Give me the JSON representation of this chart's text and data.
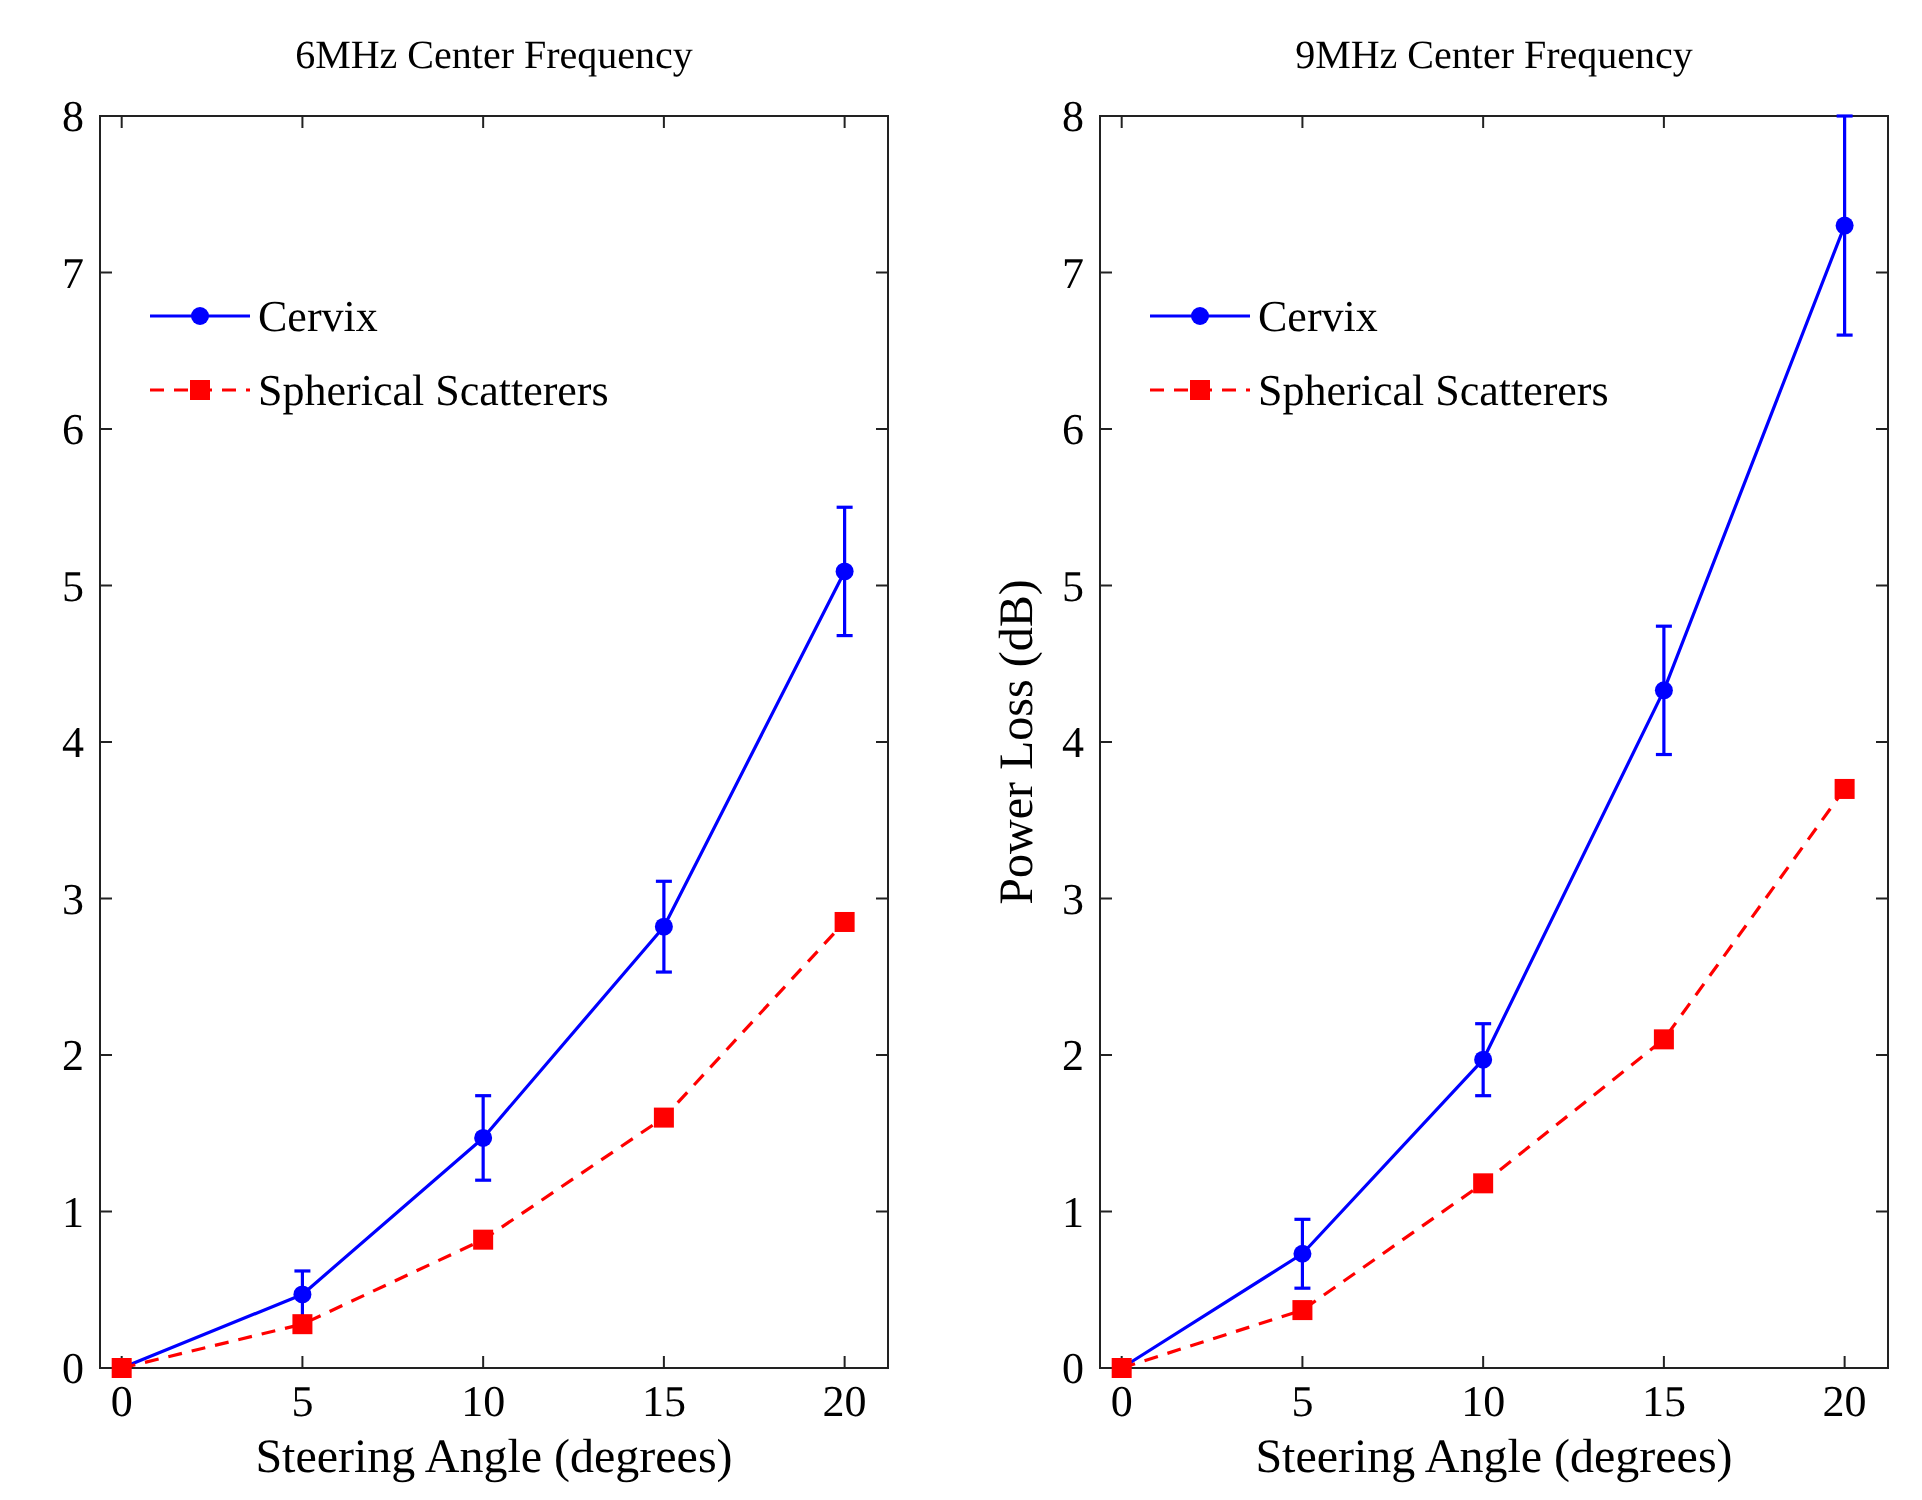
{
  "chart_data": [
    {
      "type": "line",
      "title": "6MHz Center Frequency",
      "xlabel": "Steering Angle (degrees)",
      "x": [
        0,
        5,
        10,
        15,
        20
      ],
      "xlim": [
        -0.6,
        21.2
      ],
      "xticks": [
        0,
        5,
        10,
        15,
        20
      ],
      "ylim": [
        0,
        8
      ],
      "yticks": [
        0,
        1,
        2,
        3,
        4,
        5,
        6,
        7,
        8
      ],
      "legend": "top left",
      "grid": false,
      "series": [
        {
          "name": "Cervix",
          "color": "#0000ff",
          "marker": "circle",
          "line_style": "solid",
          "values": [
            0,
            0.47,
            1.47,
            2.82,
            5.09
          ],
          "errors": [
            null,
            0.15,
            0.27,
            0.29,
            0.41
          ]
        },
        {
          "name": "Spherical Scatterers",
          "color": "#ff0000",
          "marker": "square",
          "line_style": "dashed",
          "values": [
            0,
            0.28,
            0.82,
            1.6,
            2.85
          ]
        }
      ]
    },
    {
      "type": "line",
      "title": "9MHz Center Frequency",
      "xlabel": "Steering Angle (degrees)",
      "ylabel": "Power Loss (dB)",
      "x": [
        0,
        5,
        10,
        15,
        20
      ],
      "xlim": [
        -0.6,
        21.2
      ],
      "xticks": [
        0,
        5,
        10,
        15,
        20
      ],
      "ylim": [
        0,
        8
      ],
      "yticks": [
        0,
        1,
        2,
        3,
        4,
        5,
        6,
        7,
        8
      ],
      "legend": "top left",
      "grid": false,
      "series": [
        {
          "name": "Cervix",
          "color": "#0000ff",
          "marker": "circle",
          "line_style": "solid",
          "values": [
            0,
            0.73,
            1.97,
            4.33,
            7.3
          ],
          "errors": [
            null,
            0.22,
            0.23,
            0.41,
            0.7
          ]
        },
        {
          "name": "Spherical Scatterers",
          "color": "#ff0000",
          "marker": "square",
          "line_style": "dashed",
          "values": [
            0,
            0.37,
            1.18,
            2.1,
            3.7
          ]
        }
      ]
    }
  ]
}
